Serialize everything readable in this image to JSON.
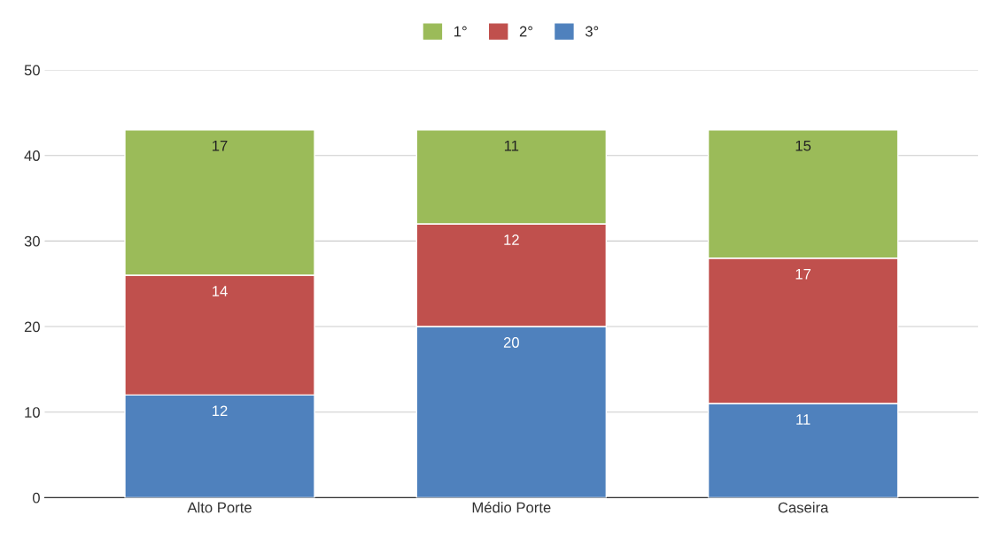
{
  "chart_data": {
    "type": "bar",
    "stacked": true,
    "categories": [
      "Alto Porte",
      "Médio Porte",
      "Caseira"
    ],
    "series": [
      {
        "name": "3°",
        "color": "#4f81bd",
        "values": [
          12,
          20,
          11
        ]
      },
      {
        "name": "2°",
        "color": "#c0504d",
        "values": [
          14,
          12,
          17
        ]
      },
      {
        "name": "1°",
        "color": "#9bbb59",
        "values": [
          17,
          11,
          15
        ]
      }
    ],
    "ylim": [
      0,
      50
    ],
    "yticks": [
      0,
      10,
      20,
      30,
      40,
      50
    ],
    "grid": "y",
    "legend": "top",
    "data_labels": true
  }
}
